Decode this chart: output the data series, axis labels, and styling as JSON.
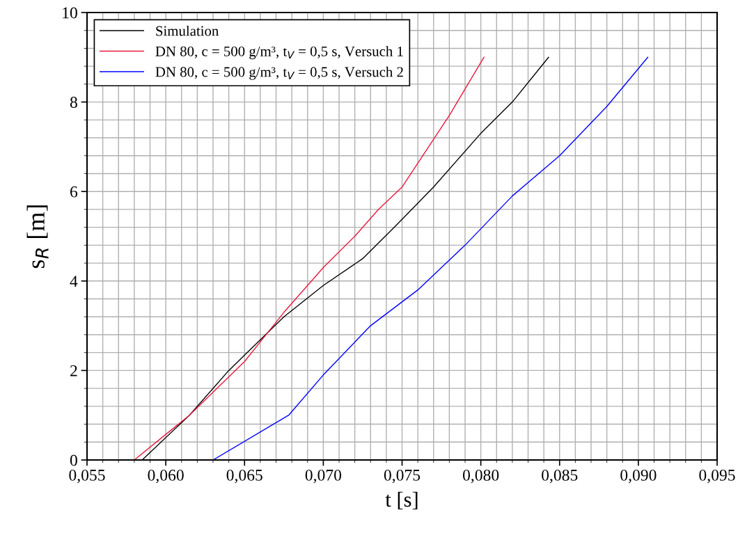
{
  "chart_data": {
    "type": "line",
    "xlabel": "t [s]",
    "ylabel": "s$_{R}$ [m]",
    "xlim": [
      0.055,
      0.095
    ],
    "xticks": [
      {
        "value": 0.055,
        "label": "0,055"
      },
      {
        "value": 0.06,
        "label": "0,060"
      },
      {
        "value": 0.065,
        "label": "0,065"
      },
      {
        "value": 0.07,
        "label": "0,070"
      },
      {
        "value": 0.075,
        "label": "0,075"
      },
      {
        "value": 0.08,
        "label": "0,080"
      },
      {
        "value": 0.085,
        "label": "0,085"
      },
      {
        "value": 0.09,
        "label": "0,090"
      },
      {
        "value": 0.095,
        "label": "0,095"
      }
    ],
    "ylim": [
      0,
      10
    ],
    "yticks": [
      0,
      2,
      4,
      6,
      8,
      10
    ],
    "grid": true,
    "legend": "top left",
    "marker": "none",
    "line_style": "solid",
    "series": [
      {
        "name": "Simulation",
        "color": "#000000",
        "x": [
          0.0585,
          0.0615,
          0.064,
          0.0675,
          0.07,
          0.0725,
          0.0745,
          0.077,
          0.08,
          0.082,
          0.0843
        ],
        "values": [
          0,
          1.0,
          2.0,
          3.2,
          3.9,
          4.5,
          5.2,
          6.1,
          7.3,
          8.0,
          9.0
        ]
      },
      {
        "name": "DN 80, c = 500 g/m³, t$_{V}$ = 0,5 s, Versuch 1",
        "color": "#e8183c",
        "x": [
          0.058,
          0.0615,
          0.065,
          0.0675,
          0.07,
          0.072,
          0.0735,
          0.075,
          0.078,
          0.0802
        ],
        "values": [
          0,
          1.0,
          2.2,
          3.3,
          4.3,
          5.0,
          5.6,
          6.1,
          7.7,
          9.0
        ]
      },
      {
        "name": "DN 80, c = 500 g/m³, t$_{V}$ = 0,5 s, Versuch 2",
        "color": "#0000ff",
        "x": [
          0.063,
          0.0678,
          0.07,
          0.073,
          0.076,
          0.079,
          0.082,
          0.085,
          0.088,
          0.0906
        ],
        "values": [
          0,
          1.0,
          1.9,
          3.0,
          3.8,
          4.8,
          5.9,
          6.8,
          7.9,
          9.0
        ]
      }
    ]
  }
}
